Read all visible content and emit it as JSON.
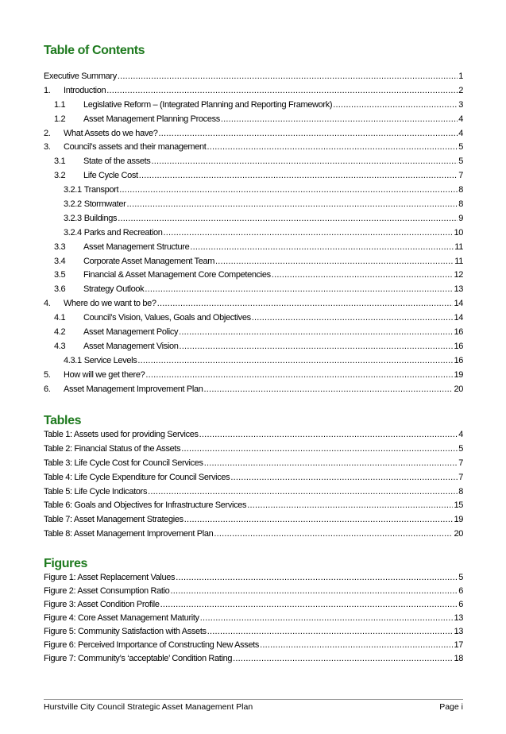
{
  "toc": {
    "heading": "Table of Contents",
    "entries": [
      {
        "level": 0,
        "num": "",
        "title": "Executive Summary",
        "page": "1"
      },
      {
        "level": 1,
        "num": "1.",
        "title": "Introduction",
        "page": "2"
      },
      {
        "level": 2,
        "num": "1.1",
        "title": "Legislative Reform – (Integrated Planning and Reporting Framework)",
        "page": "3"
      },
      {
        "level": 2,
        "num": "1.2",
        "title": "Asset Management Planning Process",
        "page": "4"
      },
      {
        "level": 1,
        "num": "2.",
        "title": "What Assets do we have?",
        "page": "4"
      },
      {
        "level": 1,
        "num": "3.",
        "title": "Council’s assets and their management",
        "page": "5"
      },
      {
        "level": 2,
        "num": "3.1",
        "title": "State of the assets",
        "page": "5"
      },
      {
        "level": 2,
        "num": "3.2",
        "title": "Life Cycle Cost",
        "page": "7"
      },
      {
        "level": 3,
        "num": "3.2.1",
        "title": "Transport",
        "page": "8"
      },
      {
        "level": 3,
        "num": "3.2.2",
        "title": "Stormwater",
        "page": "8"
      },
      {
        "level": 3,
        "num": "3.2.3",
        "title": "Buildings",
        "page": "9"
      },
      {
        "level": 3,
        "num": "3.2.4",
        "title": "Parks and Recreation",
        "page": "10"
      },
      {
        "level": 2,
        "num": "3.3",
        "title": "Asset Management Structure",
        "page": "11"
      },
      {
        "level": 2,
        "num": "3.4",
        "title": "Corporate Asset Management Team",
        "page": "11"
      },
      {
        "level": 2,
        "num": "3.5",
        "title": "Financial & Asset Management Core Competencies",
        "page": "12"
      },
      {
        "level": 2,
        "num": "3.6",
        "title": "Strategy Outlook",
        "page": "13"
      },
      {
        "level": 1,
        "num": "4.",
        "title": "Where do we want to be?",
        "page": "14"
      },
      {
        "level": 2,
        "num": "4.1",
        "title": "Council’s Vision, Values, Goals and Objectives",
        "page": "14"
      },
      {
        "level": 2,
        "num": "4.2",
        "title": "Asset Management Policy",
        "page": "16"
      },
      {
        "level": 2,
        "num": "4.3",
        "title": "Asset Management Vision",
        "page": "16"
      },
      {
        "level": 3,
        "num": "4.3.1",
        "title": "Service Levels",
        "page": "16"
      },
      {
        "level": 1,
        "num": "5.",
        "title": "How will we get there?",
        "page": "19"
      },
      {
        "level": 1,
        "num": "6.",
        "title": "Asset Management Improvement Plan",
        "page": "20"
      }
    ]
  },
  "tables": {
    "heading": "Tables",
    "entries": [
      {
        "title": "Table 1: Assets used for providing Services",
        "page": "4"
      },
      {
        "title": "Table 2: Financial Status of the Assets",
        "page": "5"
      },
      {
        "title": "Table 3: Life Cycle Cost for Council Services",
        "page": "7"
      },
      {
        "title": "Table 4: Life Cycle Expenditure for Council Services",
        "page": "7"
      },
      {
        "title": "Table 5: Life Cycle Indicators",
        "page": "8"
      },
      {
        "title": "Table 6: Goals and Objectives for Infrastructure Services",
        "page": "15"
      },
      {
        "title": "Table 7: Asset Management Strategies",
        "page": "19"
      },
      {
        "title": "Table 8: Asset Management Improvement Plan",
        "page": "20"
      }
    ]
  },
  "figures": {
    "heading": "Figures",
    "entries": [
      {
        "title": "Figure 1: Asset Replacement Values",
        "page": "5"
      },
      {
        "title": "Figure 2: Asset Consumption Ratio",
        "page": "6"
      },
      {
        "title": "Figure 3: Asset Condition Profile",
        "page": "6"
      },
      {
        "title": "Figure 4: Core Asset Management Maturity",
        "page": "13"
      },
      {
        "title": "Figure 5: Community Satisfaction with Assets",
        "page": "13"
      },
      {
        "title": "Figure 6: Perceived Importance of Constructing New Assets",
        "page": "17"
      },
      {
        "title": "Figure 7: Community’s ‘acceptable’ Condition Rating",
        "page": "18"
      }
    ]
  },
  "footer": {
    "title": "Hurstville City Council Strategic Asset Management Plan",
    "page": "Page i"
  },
  "colors": {
    "heading": "#1e7a1e"
  }
}
